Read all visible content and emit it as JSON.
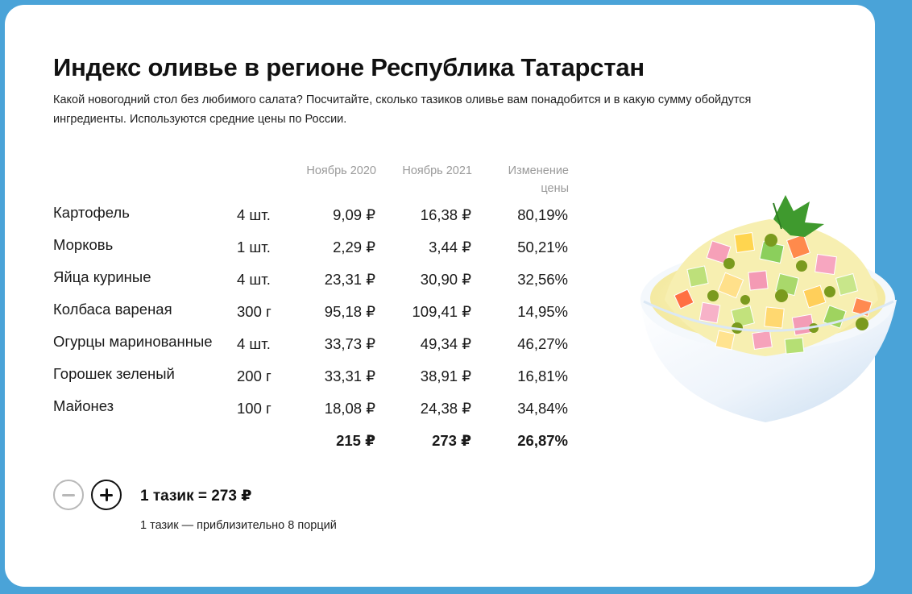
{
  "title": "Индекс оливье в регионе Республика Татарстан",
  "description": "Какой новогодний стол без любимого салата? Посчитайте, сколько тазиков оливье вам понадобится и в какую сумму обойдутся ингредиенты. Используются средние цены по России.",
  "table": {
    "headers": {
      "col_2020": "Ноябрь 2020",
      "col_2021": "Ноябрь 2021",
      "col_change_1": "Изменение",
      "col_change_2": "цены"
    },
    "rows": [
      {
        "name": "Картофель",
        "qty": "4 шт.",
        "nov2020": "9,09 ₽",
        "nov2021": "16,38 ₽",
        "change": "80,19%"
      },
      {
        "name": "Морковь",
        "qty": "1 шт.",
        "nov2020": "2,29 ₽",
        "nov2021": "3,44 ₽",
        "change": "50,21%"
      },
      {
        "name": "Яйца куриные",
        "qty": "4 шт.",
        "nov2020": "23,31 ₽",
        "nov2021": "30,90 ₽",
        "change": "32,56%"
      },
      {
        "name": "Колбаса вареная",
        "qty": "300 г",
        "nov2020": "95,18 ₽",
        "nov2021": "109,41 ₽",
        "change": "14,95%"
      },
      {
        "name": "Огурцы маринованные",
        "qty": "4 шт.",
        "nov2020": "33,73 ₽",
        "nov2021": "49,34 ₽",
        "change": "46,27%"
      },
      {
        "name": "Горошек зеленый",
        "qty": "200 г",
        "nov2020": "33,31 ₽",
        "nov2021": "38,91 ₽",
        "change": "16,81%"
      },
      {
        "name": "Майонез",
        "qty": "100 г",
        "nov2020": "18,08 ₽",
        "nov2021": "24,38 ₽",
        "change": "34,84%"
      }
    ],
    "totals": {
      "nov2020": "215 ₽",
      "nov2021": "273 ₽",
      "change": "26,87%"
    }
  },
  "calculator": {
    "result": "1 тазик = 273 ₽",
    "note": "1 тазик — приблизительно 8 порций"
  },
  "colors": {
    "background": "#4aa3d8",
    "card": "#ffffff",
    "header_text": "#9a9a9a",
    "minus_border": "#b8b8b8",
    "plus_border": "#111111"
  },
  "icons": {
    "minus": "minus-icon",
    "plus": "plus-icon",
    "salad": "salad-bowl-illustration"
  }
}
